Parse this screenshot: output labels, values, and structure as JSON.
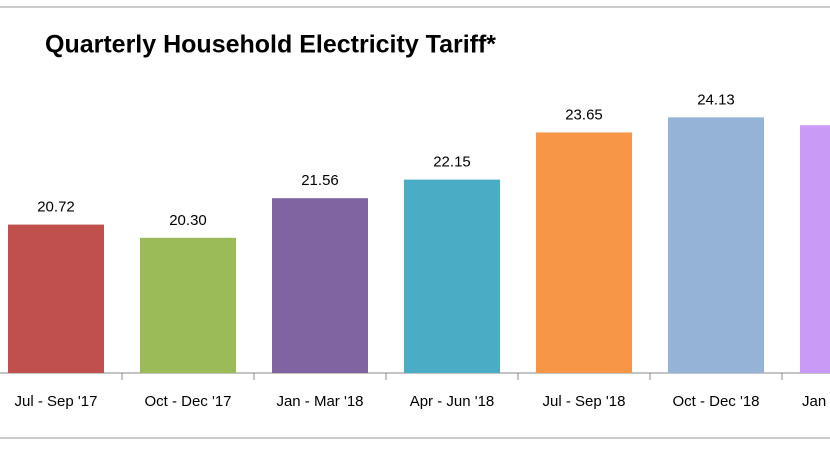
{
  "chart_data": {
    "type": "bar",
    "title": "Quarterly Household Electricity Tariff*",
    "categories": [
      "Jul - Sep '17",
      "Oct - Dec '17",
      "Jan - Mar '18",
      "Apr - Jun '18",
      "Jul - Sep '18",
      "Oct - Dec '18",
      "Jan"
    ],
    "values": [
      20.72,
      20.3,
      21.56,
      22.15,
      23.65,
      24.13,
      23.88
    ],
    "value_labels": [
      "20.72",
      "20.30",
      "21.56",
      "22.15",
      "23.65",
      "24.13",
      null
    ],
    "colors": [
      "#c0504d",
      "#9bbb59",
      "#8064a2",
      "#4bacc6",
      "#f79646",
      "#94b3d6",
      "#c99bf7"
    ],
    "ylim": [
      16,
      25
    ]
  }
}
